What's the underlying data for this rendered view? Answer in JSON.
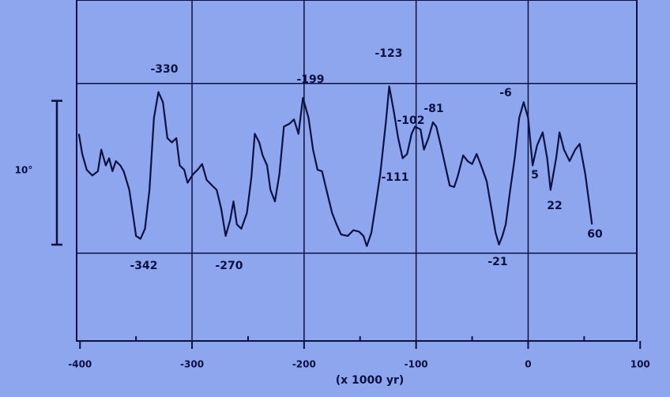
{
  "chart_data": {
    "type": "line",
    "x_label": "(x 1000 yr)",
    "xlim": [
      -403,
      97
    ],
    "ylim": [
      0,
      23.7
    ],
    "xticks": [
      -400,
      -300,
      -200,
      -100,
      0,
      100
    ],
    "xminorticks": [
      -350,
      -250,
      -150,
      -50,
      50
    ],
    "grid_x": [
      -300,
      -200,
      -100,
      0
    ],
    "grid_y": [
      6.1,
      17.9
    ],
    "scale_bar": {
      "label": "10°",
      "value": 10
    },
    "series": [
      {
        "color": "#0b1140",
        "x": [
          -401,
          -398,
          -394,
          -389,
          -384,
          -381,
          -377,
          -374,
          -371,
          -368,
          -364,
          -361,
          -356,
          -352,
          -350,
          -346,
          -342,
          -338,
          -334,
          -330,
          -326,
          -322,
          -318,
          -314,
          -311,
          -307,
          -304,
          -299,
          -295,
          -291,
          -287,
          -282,
          -278,
          -274,
          -270,
          -266,
          -263,
          -260,
          -256,
          -251,
          -247,
          -244,
          -240,
          -237,
          -233,
          -230,
          -226,
          -222,
          -218,
          -213,
          -209,
          -205,
          -201,
          -196,
          -192,
          -188,
          -184,
          -180,
          -175,
          -171,
          -167,
          -161,
          -156,
          -151,
          -147,
          -144,
          -140,
          -136,
          -132,
          -127,
          -124,
          -120,
          -116,
          -112,
          -108,
          -104,
          -101,
          -96,
          -93,
          -89,
          -85,
          -82,
          -78,
          -74,
          -70,
          -66,
          -63,
          -58,
          -54,
          -50,
          -46,
          -42,
          -37,
          -33,
          -29,
          -26,
          -23,
          -20,
          -16,
          -12,
          -8,
          -4,
          0,
          4,
          8,
          13,
          17,
          20,
          25,
          28,
          32,
          37,
          42,
          46,
          51,
          57
        ],
        "values": [
          14.4,
          13.0,
          11.9,
          11.5,
          11.8,
          13.3,
          12.2,
          12.7,
          11.8,
          12.5,
          12.2,
          11.8,
          10.5,
          8.4,
          7.3,
          7.1,
          7.8,
          10.5,
          15.5,
          17.3,
          16.6,
          14.1,
          13.8,
          14.1,
          12.2,
          11.9,
          11.0,
          11.6,
          11.9,
          12.3,
          11.2,
          10.8,
          10.5,
          9.2,
          7.3,
          8.4,
          9.7,
          8.1,
          7.8,
          8.9,
          11.4,
          14.4,
          13.8,
          12.9,
          12.2,
          10.5,
          9.7,
          11.6,
          14.9,
          15.1,
          15.4,
          14.4,
          16.9,
          15.5,
          13.3,
          11.9,
          11.8,
          10.5,
          8.9,
          8.1,
          7.4,
          7.3,
          7.7,
          7.6,
          7.3,
          6.6,
          7.5,
          9.5,
          11.6,
          15.2,
          17.7,
          16.0,
          14.1,
          12.7,
          13.0,
          14.4,
          14.9,
          14.7,
          13.3,
          14.1,
          15.2,
          14.9,
          13.6,
          12.2,
          10.8,
          10.7,
          11.4,
          12.9,
          12.5,
          12.3,
          13.0,
          12.2,
          11.1,
          9.3,
          7.5,
          6.7,
          7.3,
          8.1,
          10.5,
          12.7,
          15.5,
          16.6,
          15.5,
          12.2,
          13.6,
          14.5,
          12.7,
          10.5,
          12.7,
          14.5,
          13.3,
          12.5,
          13.3,
          13.7,
          11.6,
          8.1
        ]
      }
    ],
    "annotations": [
      "-330",
      "-199",
      "-123",
      "-81",
      "-102",
      "-111",
      "-6",
      "5",
      "22",
      "60",
      "-342",
      "-270",
      "-21"
    ]
  }
}
